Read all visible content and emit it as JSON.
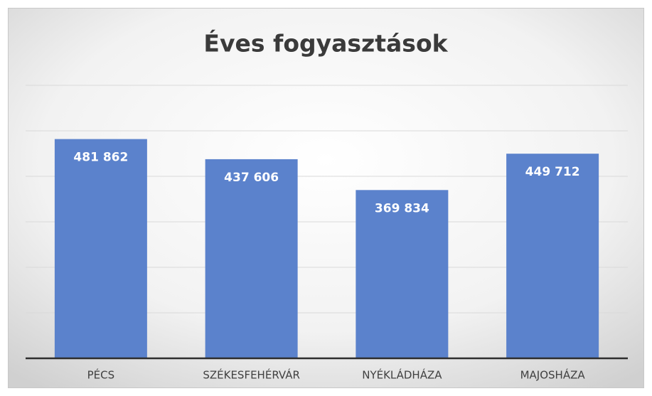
{
  "chart_data": {
    "type": "bar",
    "title": "Éves fogyasztások",
    "categories": [
      "PÉCS",
      "SZÉKESFEHÉRVÁR",
      "NYÉKLÁDHÁZA",
      "MAJOSHÁZA"
    ],
    "values": [
      481862,
      437606,
      369834,
      449712
    ],
    "value_labels": [
      "481 862",
      "437 606",
      "369 834",
      "449 712"
    ],
    "color": "#5b82cc",
    "ylim": [
      0,
      600000
    ],
    "yticks": [
      0,
      100000,
      200000,
      300000,
      400000,
      500000,
      600000
    ],
    "grid": true
  }
}
